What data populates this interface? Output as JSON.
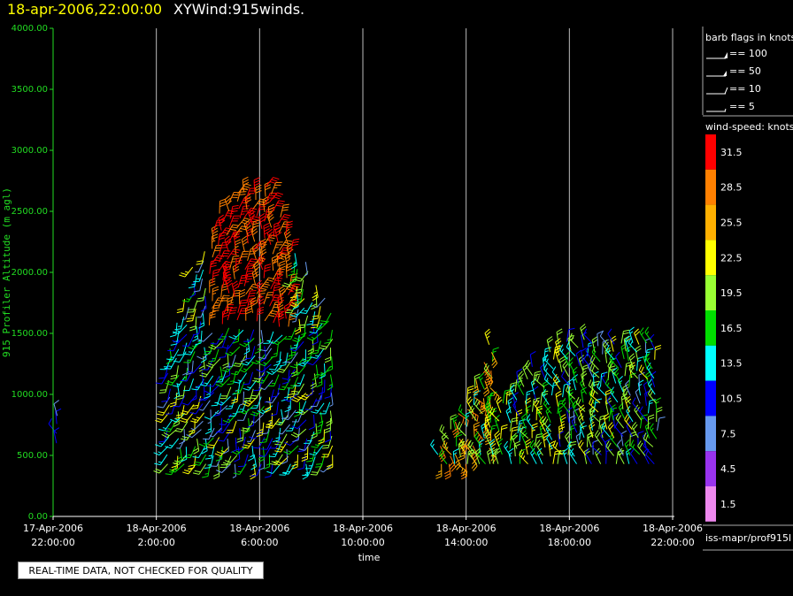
{
  "header": {
    "date": "18-apr-2006,22:00:00",
    "title": "XYWind:915winds."
  },
  "chart_data": {
    "type": "wind-barb time-height plot",
    "xlabel": "time",
    "ylabel": "915 Profiler Altitude (m agl)",
    "ylim": [
      0,
      4000
    ],
    "y_ticks": [
      "0.00",
      "500.00",
      "1000.00",
      "1500.00",
      "2000.00",
      "2500.00",
      "3000.00",
      "3500.00",
      "4000.00"
    ],
    "x_ticks": [
      {
        "date": "17-Apr-2006",
        "time": "22:00:00"
      },
      {
        "date": "18-Apr-2006",
        "time": "2:00:00"
      },
      {
        "date": "18-Apr-2006",
        "time": "6:00:00"
      },
      {
        "date": "18-Apr-2006",
        "time": "10:00:00"
      },
      {
        "date": "18-Apr-2006",
        "time": "14:00:00"
      },
      {
        "date": "18-Apr-2006",
        "time": "18:00:00"
      },
      {
        "date": "18-Apr-2006",
        "time": "22:00:00"
      }
    ],
    "grid": "vertical",
    "barb_legend": {
      "title": "barb flags in knots",
      "items": [
        "== 100",
        "== 50",
        "== 10",
        "== 5"
      ]
    },
    "colorbar": {
      "title": "wind-speed: knots",
      "levels": [
        {
          "label": "31.5",
          "color": "#ff0000"
        },
        {
          "label": "28.5",
          "color": "#ff8000"
        },
        {
          "label": "25.5",
          "color": "#ffb000"
        },
        {
          "label": "22.5",
          "color": "#ffff00"
        },
        {
          "label": "19.5",
          "color": "#99ff33"
        },
        {
          "label": "16.5",
          "color": "#00dd00"
        },
        {
          "label": "13.5",
          "color": "#00ffff"
        },
        {
          "label": "10.5",
          "color": "#0000ff"
        },
        {
          "label": "7.5",
          "color": "#6699ee"
        },
        {
          "label": "4.5",
          "color": "#9933ee"
        },
        {
          "label": "1.5",
          "color": "#ee88ee"
        }
      ]
    },
    "source": "iss-mapr/prof915l"
  },
  "footer": {
    "quality_note": "REAL-TIME DATA, NOT CHECKED FOR QUALITY"
  }
}
